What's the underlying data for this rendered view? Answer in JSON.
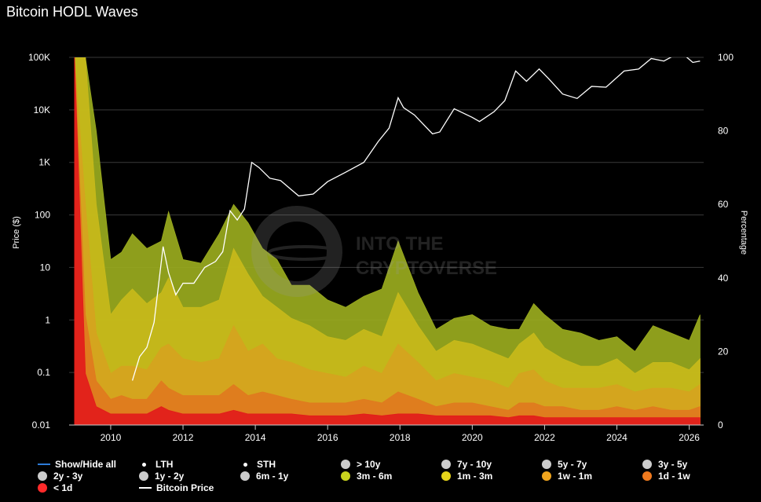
{
  "title": "Bitcoin HODL Waves",
  "watermark": {
    "line1": "INTO THE",
    "line2": "CRYPTOVERSE"
  },
  "chart_data": {
    "type": "area",
    "title": "Bitcoin HODL Waves",
    "xlabel": "",
    "ylabel_left": "Price ($)",
    "ylabel_right": "Percentage",
    "x_ticks": [
      "2010",
      "2012",
      "2014",
      "2016",
      "2018",
      "2020",
      "2022",
      "2024",
      "2026"
    ],
    "xlim": [
      2008.85,
      2026.4
    ],
    "y_left_scale": "log",
    "y_left_ticks": [
      "0.01",
      "0.1",
      "1",
      "10",
      "100",
      "1K",
      "10K",
      "100K"
    ],
    "y_left_lim": [
      0.01,
      100000
    ],
    "y_right_ticks": [
      "0",
      "20",
      "40",
      "60",
      "80",
      "100"
    ],
    "y_right_lim": [
      0,
      100
    ],
    "grid": true,
    "x": [
      2009.0,
      2009.3,
      2009.6,
      2010.0,
      2010.3,
      2010.6,
      2011.0,
      2011.4,
      2011.6,
      2012.0,
      2012.5,
      2013.0,
      2013.4,
      2013.8,
      2014.2,
      2014.6,
      2015.0,
      2015.5,
      2016.0,
      2016.5,
      2017.0,
      2017.5,
      2017.95,
      2018.5,
      2019.0,
      2019.5,
      2020.0,
      2020.5,
      2021.0,
      2021.3,
      2021.7,
      2022.0,
      2022.5,
      2023.0,
      2023.5,
      2024.0,
      2024.5,
      2025.0,
      2025.5,
      2026.0,
      2026.3
    ],
    "series": [
      {
        "name": "3m - 6m",
        "color": "#9aab1e",
        "values": [
          100,
          100,
          80,
          45,
          47,
          52,
          48,
          50,
          58,
          45,
          44,
          52,
          60,
          55,
          48,
          45,
          38,
          38,
          34,
          32,
          35,
          37,
          50,
          36,
          26,
          29,
          30,
          27,
          26,
          26,
          33,
          30,
          26,
          25,
          23,
          24,
          20,
          27,
          25,
          23,
          30
        ]
      },
      {
        "name": "1m - 3m",
        "color": "#c8ba1a",
        "values": [
          100,
          100,
          60,
          30,
          34,
          37,
          33,
          36,
          40,
          32,
          32,
          34,
          48,
          41,
          35,
          32,
          29,
          27,
          24,
          23,
          26,
          24,
          36,
          27,
          20,
          23,
          22,
          20,
          18,
          22,
          25,
          21,
          18,
          16,
          16,
          18,
          14,
          17,
          17,
          15,
          18
        ]
      },
      {
        "name": "1w - 1m",
        "color": "#d6a31e",
        "values": [
          100,
          60,
          25,
          14,
          16,
          16,
          15,
          21,
          22,
          18,
          17,
          18,
          27,
          20,
          22,
          18,
          17,
          15,
          14,
          13,
          16,
          14,
          22,
          17,
          12,
          14,
          13,
          12,
          10,
          14,
          15,
          12,
          10,
          10,
          10,
          11,
          9,
          10,
          10,
          9,
          11
        ]
      },
      {
        "name": "1d - 1w",
        "color": "#e07a1e",
        "values": [
          100,
          30,
          12,
          7,
          8,
          7,
          7,
          12,
          10,
          8,
          8,
          8,
          11,
          8,
          9,
          8,
          7,
          6,
          6,
          6,
          7,
          6,
          9,
          7,
          5,
          6,
          6,
          5,
          4,
          6,
          6,
          5,
          5,
          4,
          4,
          5,
          4,
          5,
          4,
          4,
          5
        ]
      },
      {
        "name": "< 1d",
        "color": "#e21b1b",
        "values": [
          100,
          14,
          5,
          3,
          3,
          3,
          3,
          5,
          4,
          3,
          3,
          3,
          4,
          3,
          3,
          3,
          3,
          2.5,
          2.5,
          2.5,
          3,
          2.5,
          3,
          3,
          2.5,
          2.5,
          2.5,
          2.5,
          2,
          2.5,
          2.5,
          2,
          2,
          2,
          2,
          2,
          2,
          2,
          2,
          2,
          2
        ]
      }
    ],
    "price_series": {
      "name": "Bitcoin Price",
      "x": [
        2010.6,
        2010.8,
        2011.0,
        2011.2,
        2011.45,
        2011.6,
        2011.8,
        2012.0,
        2012.3,
        2012.6,
        2012.9,
        2013.1,
        2013.3,
        2013.5,
        2013.7,
        2013.9,
        2014.1,
        2014.4,
        2014.7,
        2015.0,
        2015.2,
        2015.6,
        2016.0,
        2016.5,
        2017.0,
        2017.4,
        2017.7,
        2017.95,
        2018.1,
        2018.4,
        2018.9,
        2019.1,
        2019.5,
        2020.0,
        2020.2,
        2020.6,
        2020.9,
        2021.2,
        2021.5,
        2021.85,
        2022.1,
        2022.5,
        2022.9,
        2023.3,
        2023.7,
        2024.2,
        2024.6,
        2024.95,
        2025.3,
        2025.6,
        2025.9,
        2026.1,
        2026.3
      ],
      "values": [
        0.07,
        0.2,
        0.3,
        0.9,
        25,
        8,
        3,
        5,
        5,
        10,
        13,
        20,
        120,
        80,
        130,
        1000,
        800,
        500,
        450,
        300,
        230,
        250,
        430,
        650,
        1000,
        2500,
        4500,
        17000,
        11000,
        8000,
        3500,
        3800,
        10500,
        7200,
        6000,
        9200,
        15000,
        55000,
        35000,
        60000,
        40000,
        20000,
        16500,
        28000,
        27000,
        55000,
        60000,
        95000,
        85000,
        110000,
        105000,
        80000,
        85000
      ]
    }
  },
  "legend": {
    "show_hide_all": "Show/Hide all",
    "items": [
      {
        "label": "LTH",
        "symbol": "smalldot",
        "color": "#ffffff"
      },
      {
        "label": "STH",
        "symbol": "smalldot",
        "color": "#ffffff"
      },
      {
        "label": "> 10y",
        "symbol": "dot",
        "color": "#cccccc"
      },
      {
        "label": "7y - 10y",
        "symbol": "dot",
        "color": "#cccccc"
      },
      {
        "label": "5y - 7y",
        "symbol": "dot",
        "color": "#cccccc"
      },
      {
        "label": "3y - 5y",
        "symbol": "dot",
        "color": "#cccccc"
      },
      {
        "label": "2y - 3y",
        "symbol": "dot",
        "color": "#cccccc"
      },
      {
        "label": "1y - 2y",
        "symbol": "dot",
        "color": "#cccccc"
      },
      {
        "label": "6m - 1y",
        "symbol": "dot",
        "color": "#cccccc"
      },
      {
        "label": "3m - 6m",
        "symbol": "dot",
        "color": "#c8d31e"
      },
      {
        "label": "1m - 3m",
        "symbol": "dot",
        "color": "#e6d41a"
      },
      {
        "label": "1w - 1m",
        "symbol": "dot",
        "color": "#f0a51e"
      },
      {
        "label": "1d - 1w",
        "symbol": "dot",
        "color": "#f07a1e"
      },
      {
        "label": "< 1d",
        "symbol": "dot",
        "color": "#ff2a2a"
      },
      {
        "label": "Bitcoin Price",
        "symbol": "line",
        "color": "#ffffff"
      }
    ]
  }
}
